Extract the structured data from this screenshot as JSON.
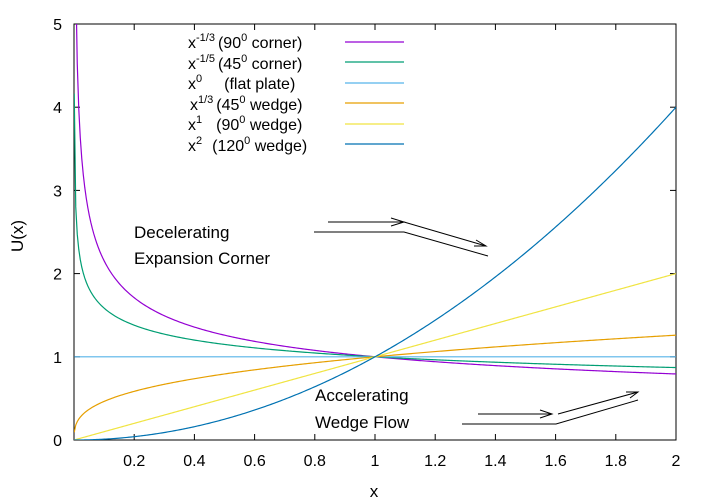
{
  "chart_data": {
    "type": "line",
    "xlabel": "x",
    "ylabel": "U(x)",
    "xlim": [
      0,
      2
    ],
    "ylim": [
      0,
      5
    ],
    "grid": false,
    "legend_placement": "top-center",
    "x_ticks": [
      "0.2",
      "0.4",
      "0.6",
      "0.8",
      "1",
      "1.2",
      "1.4",
      "1.6",
      "1.8",
      "2"
    ],
    "y_ticks": [
      "0",
      "1",
      "2",
      "3",
      "4",
      "5"
    ],
    "series": [
      {
        "key": "s1",
        "base": "x",
        "exponent": "-1/3",
        "name": "(90",
        "name_sup": "0",
        "name_rest": " corner)",
        "power": -0.3333333,
        "color": "#9400d3"
      },
      {
        "key": "s2",
        "base": "x",
        "exponent": "-1/5",
        "name": "(45",
        "name_sup": "0",
        "name_rest": " corner)",
        "power": -0.2,
        "color": "#009e73"
      },
      {
        "key": "s3",
        "base": "x",
        "exponent": "0",
        "name": "(flat plate)",
        "name_sup": "",
        "name_rest": "",
        "power": 0,
        "color": "#56b4e9"
      },
      {
        "key": "s4",
        "base": "x",
        "exponent": "1/3",
        "name": "(45",
        "name_sup": "0",
        "name_rest": " wedge)",
        "power": 0.3333333,
        "color": "#e69f00"
      },
      {
        "key": "s5",
        "base": "x",
        "exponent": "1",
        "name": "(90",
        "name_sup": "0",
        "name_rest": " wedge)",
        "power": 1,
        "color": "#f0e442"
      },
      {
        "key": "s6",
        "base": "x",
        "exponent": "2",
        "name": "(120",
        "name_sup": "0",
        "name_rest": " wedge)",
        "power": 2,
        "color": "#0072b2"
      }
    ],
    "annotations": [
      {
        "key": "decel",
        "lines": [
          "Decelerating",
          "Expansion Corner"
        ]
      },
      {
        "key": "accel",
        "lines": [
          "Accelerating",
          "Wedge Flow"
        ]
      }
    ]
  }
}
